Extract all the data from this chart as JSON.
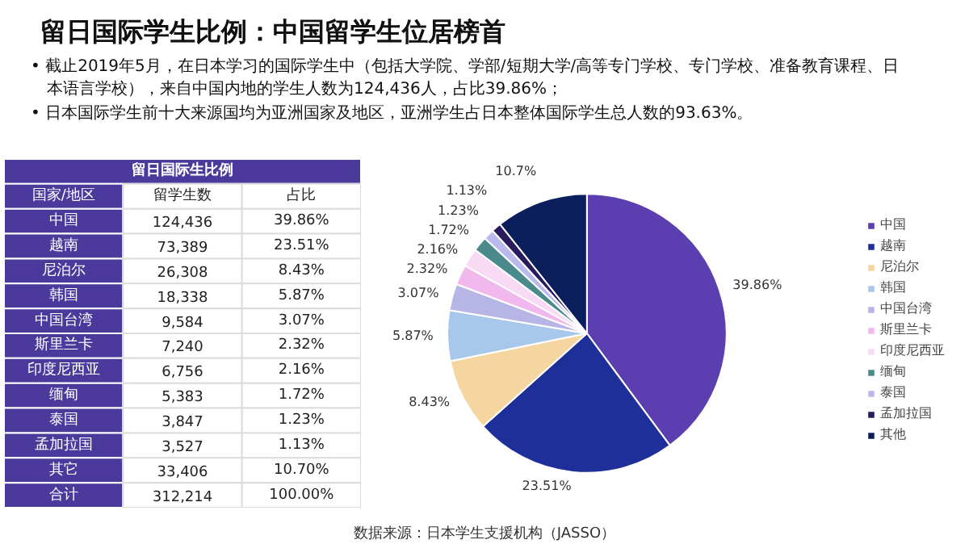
{
  "chart_data": [
    {
      "type": "other",
      "title": "留日国际生比例",
      "annotations": [
        "国家/地区",
        "留学生数",
        "占比",
        "中国",
        "124,436",
        "39.86%",
        "越南",
        "73,389",
        "23.51%",
        "尼泊尔",
        "26,308",
        "8.43%",
        "韩国",
        "18,338",
        "5.87%",
        "中国台湾",
        "9,584",
        "3.07%",
        "斯里兰卡",
        "7,240",
        "2.32%",
        "印度尼西亚",
        "6,756",
        "2.16%",
        "缅甸",
        "5,383",
        "1.72%",
        "泰国",
        "3,847",
        "1.23%",
        "孟加拉国",
        "3,527",
        "1.13%",
        "其它",
        "33,406",
        "10.70%",
        "合计",
        "312,214",
        "100.00%"
      ]
    },
    {
      "type": "pie",
      "title": "留日国际学生比例：中国留学生位居榜首",
      "subtitle": "• 截止2019年5月，在日本学习的国际学生中（包括大学院、学部/短期大学/高等专门学校、专门学校、准备教育课程、日本语言学校），来自中国内地的学生人数为124,436人，占比39.86%；",
      "categories": [
        "中国",
        "越南",
        "尼泊尔",
        "韩国",
        "中国台湾",
        "斯里兰卡",
        "印度尼西亚",
        "缅甸",
        "泰国",
        "孟加拉国",
        "其他"
      ],
      "values": [
        39.86,
        23.51,
        8.43,
        5.87,
        3.07,
        2.32,
        2.16,
        1.72,
        1.23,
        1.13,
        10.7
      ],
      "value_labels": [
        "39.86%",
        "23.51%",
        "8.43%",
        "5.87%",
        "3.07%",
        "2.32%",
        "2.16%",
        "1.72%",
        "1.23%",
        "1.13%",
        "10.7%"
      ],
      "colors": [
        "#5b3fb0",
        "#1f2f9a",
        "#f6d6a0",
        "#a7c8ea",
        "#b7b5e6",
        "#f0b8ec",
        "#f8daf5",
        "#4a8a8c",
        "#b9b9ee",
        "#2a1a5e",
        "#0b1f5c"
      ],
      "legend": "right",
      "annotations": [
        "• 日本国际学生前十大来源国均为亚洲国家及地区，亚洲学生占日本整体国际学生总人数的93.63%。",
        "数据来源：日本学生支援机构（JASSO）"
      ]
    }
  ]
}
